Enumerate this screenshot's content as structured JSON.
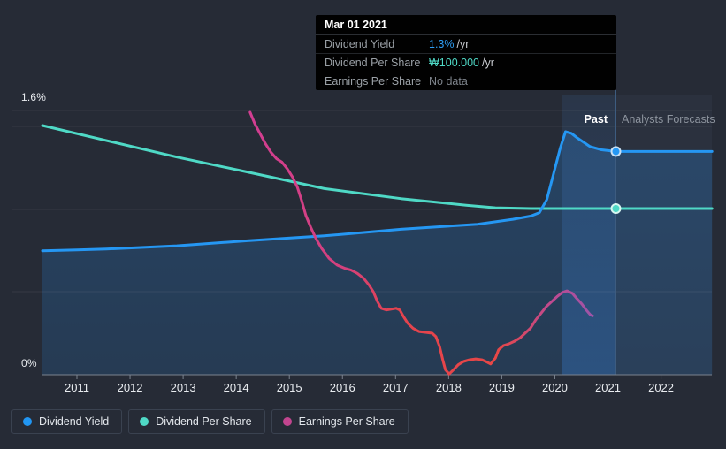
{
  "tooltip": {
    "date": "Mar 01 2021",
    "rows": [
      {
        "label": "Dividend Yield",
        "value": "1.3%",
        "suffix": "/yr",
        "value_color": "#2e9df4"
      },
      {
        "label": "Dividend Per Share",
        "value": "₩100.000",
        "suffix": "/yr",
        "value_color": "#4fd9c6"
      },
      {
        "label": "Earnings Per Share",
        "value": "No data",
        "suffix": "",
        "value_color": "#7e848c"
      }
    ]
  },
  "regions": {
    "past_label": "Past",
    "forecast_label": "Analysts Forecasts"
  },
  "axis": {
    "y_top_label": "1.6%",
    "y_bottom_label": "0%",
    "years": [
      "2011",
      "2012",
      "2013",
      "2014",
      "2015",
      "2016",
      "2017",
      "2018",
      "2019",
      "2020",
      "2021",
      "2022"
    ]
  },
  "legend": [
    {
      "label": "Dividend Yield",
      "color": "#2196f3"
    },
    {
      "label": "Dividend Per Share",
      "color": "#4fd9c6"
    },
    {
      "label": "Earnings Per Share",
      "color": "#c2458f"
    }
  ],
  "colors": {
    "background": "#262b36",
    "grid": "rgba(255,255,255,0.07)",
    "axis_line": "#7b838f",
    "today_line": "#3d5c80",
    "yield_line": "#2597f3",
    "dps_line": "#4fd9c6",
    "marker_ring_blue": "#c9dff2",
    "marker_ring_teal": "#d6f6f0"
  },
  "chart_data": {
    "type": "line",
    "title": "Dividend yield, dividend per share and earnings per share history with analyst forecasts",
    "x_range": [
      2010.35,
      2022.96
    ],
    "today_x": 2021.15,
    "past_band_start_x": 2020.15,
    "ylim_percent": [
      0,
      1.6
    ],
    "ylim_won": [
      0,
      160
    ],
    "grid": "horizontal-faint",
    "legend_position": "bottom-left",
    "series": [
      {
        "name": "Dividend Yield",
        "unit": "%",
        "color": "#2597f3",
        "fill": true,
        "points": [
          [
            2010.35,
            0.75
          ],
          [
            2011.0,
            0.755
          ],
          [
            2011.55,
            0.76
          ],
          [
            2012.88,
            0.78
          ],
          [
            2014.21,
            0.81
          ],
          [
            2015.66,
            0.84
          ],
          [
            2017.1,
            0.88
          ],
          [
            2018.54,
            0.91
          ],
          [
            2019.21,
            0.94
          ],
          [
            2019.55,
            0.96
          ],
          [
            2019.71,
            0.98
          ],
          [
            2019.85,
            1.06
          ],
          [
            2019.98,
            1.22
          ],
          [
            2020.1,
            1.37
          ],
          [
            2020.2,
            1.47
          ],
          [
            2020.31,
            1.46
          ],
          [
            2020.43,
            1.43
          ],
          [
            2020.66,
            1.38
          ],
          [
            2020.88,
            1.36
          ],
          [
            2021.15,
            1.35
          ]
        ],
        "forecast_points": [
          [
            2021.15,
            1.35
          ],
          [
            2022.96,
            1.35
          ]
        ]
      },
      {
        "name": "Dividend Per Share",
        "unit": "won",
        "color": "#4fd9c6",
        "fill": false,
        "points": [
          [
            2010.35,
            150
          ],
          [
            2011.55,
            141
          ],
          [
            2012.88,
            131
          ],
          [
            2014.21,
            122
          ],
          [
            2015.66,
            112
          ],
          [
            2017.1,
            106
          ],
          [
            2018.33,
            102
          ],
          [
            2018.88,
            100.5
          ],
          [
            2019.55,
            100
          ],
          [
            2021.15,
            100
          ]
        ],
        "forecast_points": [
          [
            2021.15,
            100
          ],
          [
            2022.96,
            100
          ]
        ]
      },
      {
        "name": "Earnings Per Share",
        "unit": "won",
        "color": "gradient",
        "fill": false,
        "gradient_stops": [
          [
            "0%",
            "#d23e92"
          ],
          [
            "28%",
            "#d4417c"
          ],
          [
            "42%",
            "#e3434f"
          ],
          [
            "72%",
            "#e74746"
          ],
          [
            "88%",
            "#c04a90"
          ],
          [
            "100%",
            "#9d55a8"
          ]
        ],
        "points": [
          [
            2014.26,
            158
          ],
          [
            2014.35,
            151
          ],
          [
            2014.45,
            145
          ],
          [
            2014.55,
            139
          ],
          [
            2014.65,
            134
          ],
          [
            2014.76,
            130
          ],
          [
            2014.86,
            128
          ],
          [
            2014.96,
            124
          ],
          [
            2015.06,
            119
          ],
          [
            2015.15,
            113
          ],
          [
            2015.23,
            105
          ],
          [
            2015.31,
            96
          ],
          [
            2015.4,
            89
          ],
          [
            2015.5,
            82
          ],
          [
            2015.61,
            76
          ],
          [
            2015.75,
            70
          ],
          [
            2015.9,
            66
          ],
          [
            2016.05,
            64
          ],
          [
            2016.16,
            63
          ],
          [
            2016.28,
            61
          ],
          [
            2016.4,
            58
          ],
          [
            2016.5,
            54
          ],
          [
            2016.58,
            50
          ],
          [
            2016.66,
            44
          ],
          [
            2016.73,
            40
          ],
          [
            2016.83,
            39
          ],
          [
            2016.93,
            39.5
          ],
          [
            2017.01,
            40
          ],
          [
            2017.08,
            39
          ],
          [
            2017.15,
            35
          ],
          [
            2017.23,
            31
          ],
          [
            2017.33,
            28
          ],
          [
            2017.44,
            26
          ],
          [
            2017.58,
            25.5
          ],
          [
            2017.69,
            25
          ],
          [
            2017.76,
            23
          ],
          [
            2017.83,
            17
          ],
          [
            2017.89,
            9
          ],
          [
            2017.94,
            3
          ],
          [
            2018.01,
            0.5
          ],
          [
            2018.09,
            3
          ],
          [
            2018.18,
            6
          ],
          [
            2018.28,
            8
          ],
          [
            2018.39,
            9
          ],
          [
            2018.51,
            9.5
          ],
          [
            2018.63,
            9
          ],
          [
            2018.73,
            7.5
          ],
          [
            2018.79,
            6.5
          ],
          [
            2018.88,
            10
          ],
          [
            2018.94,
            15
          ],
          [
            2019.03,
            17.5
          ],
          [
            2019.13,
            18.5
          ],
          [
            2019.23,
            20
          ],
          [
            2019.34,
            22
          ],
          [
            2019.44,
            25
          ],
          [
            2019.54,
            28
          ],
          [
            2019.64,
            33
          ],
          [
            2019.74,
            37
          ],
          [
            2019.84,
            41
          ],
          [
            2019.94,
            44
          ],
          [
            2020.04,
            47
          ],
          [
            2020.14,
            49.5
          ],
          [
            2020.23,
            50.5
          ],
          [
            2020.33,
            49
          ],
          [
            2020.41,
            46
          ],
          [
            2020.51,
            42.5
          ],
          [
            2020.59,
            39
          ],
          [
            2020.67,
            36
          ],
          [
            2020.71,
            35.5
          ]
        ]
      }
    ],
    "markers": [
      {
        "series": "Dividend Yield",
        "x": 2021.15,
        "y": 1.35,
        "unit": "%"
      },
      {
        "series": "Dividend Per Share",
        "x": 2021.15,
        "y": 100,
        "unit": "won"
      }
    ]
  }
}
